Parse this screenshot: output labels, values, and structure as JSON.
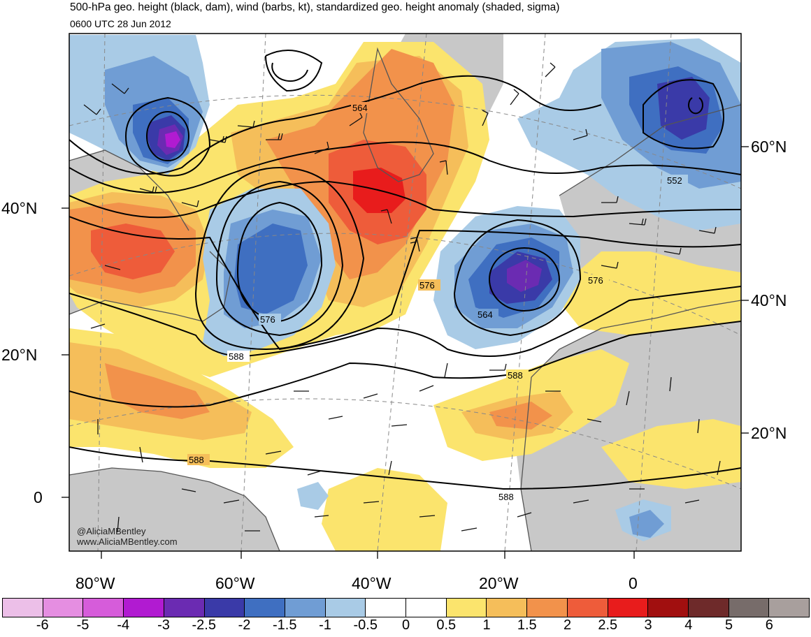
{
  "header": {
    "title": "500-hPa geo. height (black, dam), wind (barbs, kt), standardized geo. height anomaly (shaded, sigma)",
    "subtitle": "0600 UTC 28 Jun 2012"
  },
  "credits": [
    "@AliciaMBentley",
    "www.AliciaMBentley.com"
  ],
  "lat_labels_left": [
    "40°N",
    "20°N",
    "0"
  ],
  "lat_labels_right": [
    "60°N",
    "40°N",
    "20°N"
  ],
  "lon_labels": [
    "80°W",
    "60°W",
    "40°W",
    "20°W",
    "0"
  ],
  "contour_labels": [
    "564",
    "552",
    "576",
    "576",
    "564",
    "576",
    "588",
    "588",
    "588",
    "588"
  ],
  "colorbar": {
    "colors": [
      "#ecbfe8",
      "#e58ee1",
      "#d65cda",
      "#b11bd1",
      "#6b2bb2",
      "#3a3aa8",
      "#3f6fc1",
      "#709dd4",
      "#a9cbe6",
      "#ffffff",
      "#ffffff",
      "#fbe46d",
      "#f5be5a",
      "#f2924b",
      "#ee5c3a",
      "#e81c1c",
      "#a10f0f",
      "#6e2a2a",
      "#776c6a",
      "#a89f9d"
    ],
    "labels": [
      "-6",
      "-5",
      "-4",
      "-3",
      "-2.5",
      "-2",
      "-1.5",
      "-1",
      "-0.5",
      "0",
      "0.5",
      "1",
      "1.5",
      "2",
      "2.5",
      "3",
      "4",
      "5",
      "6"
    ]
  },
  "map_data": {
    "projection": "polar stereographic",
    "domain": "North Atlantic, Africa, Europe",
    "fields": [
      "500-hPa geopotential height (dam)",
      "wind barbs (kt)",
      "standardized height anomaly (sigma)"
    ],
    "colors": {
      "land": "#c8c8c8",
      "coastline": "#555555",
      "contour": "#000000"
    }
  }
}
